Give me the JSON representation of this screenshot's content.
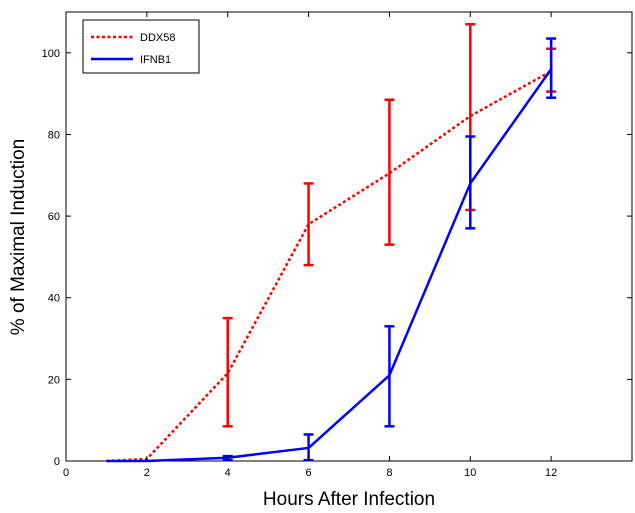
{
  "chart_data": {
    "type": "line",
    "xlabel": "Hours After Infection",
    "ylabel": "% of Maximal Induction",
    "xlim": [
      0,
      14
    ],
    "ylim": [
      0,
      110
    ],
    "xticks": [
      0,
      2,
      4,
      6,
      8,
      10,
      12
    ],
    "yticks": [
      0,
      20,
      40,
      60,
      80,
      100
    ],
    "grid": false,
    "legend": "top-left",
    "series": [
      {
        "name": "DDX58",
        "color": "#ff0000",
        "line_style": "dotted",
        "x": [
          1,
          2,
          4,
          6,
          8,
          10,
          12
        ],
        "y": [
          0,
          0.5,
          21.5,
          58,
          70.5,
          84.5,
          95.5
        ],
        "err_low": [
          null,
          null,
          8.5,
          48,
          53,
          61.5,
          90.5
        ],
        "err_high": [
          null,
          null,
          35,
          68,
          88.5,
          107,
          101
        ]
      },
      {
        "name": "IFNB1",
        "color": "#0000ff",
        "line_style": "solid",
        "x": [
          1,
          2,
          4,
          6,
          8,
          10,
          12
        ],
        "y": [
          0,
          0,
          0.8,
          3.2,
          21,
          68,
          96
        ],
        "err_low": [
          null,
          null,
          0.2,
          0.2,
          8.5,
          57,
          89
        ],
        "err_high": [
          null,
          null,
          1.2,
          6.5,
          33,
          79.5,
          103.5
        ]
      }
    ]
  }
}
